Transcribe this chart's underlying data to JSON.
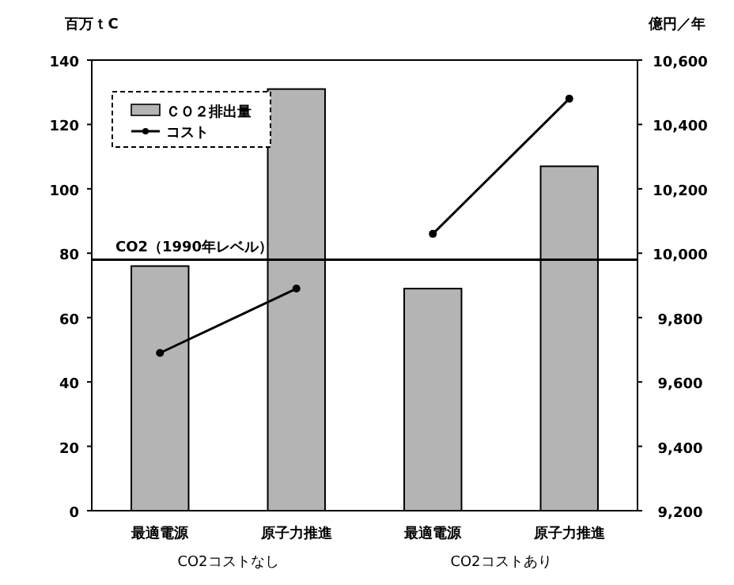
{
  "chart_data": {
    "type": "bar",
    "ylabel": "百万ｔC",
    "y2label": "億円／年",
    "categories": [
      "最適電源",
      "原子力推進",
      "最適電源",
      "原子力推進"
    ],
    "series": [
      {
        "name": "ＣＯ２排出量",
        "color": "#b4b4b4",
        "values": [
          76,
          131,
          69,
          107
        ]
      },
      {
        "name": "コスト",
        "type": "line",
        "axis": "y2",
        "color": "#000000",
        "values": [
          9690,
          9890,
          null,
          null
        ]
      },
      {
        "type": "line",
        "axis": "y2",
        "color": "#000000",
        "values": [
          null,
          null,
          10060,
          10480
        ]
      }
    ],
    "ylim": [
      0,
      140
    ],
    "yticks": [
      0,
      20,
      40,
      60,
      80,
      100,
      120,
      140
    ],
    "y2lim": [
      9200,
      10600
    ],
    "y2ticks": [
      {
        "value": 9200,
        "label": "9,200"
      },
      {
        "value": 9400,
        "label": "9,400"
      },
      {
        "value": 9600,
        "label": "9,600"
      },
      {
        "value": 9800,
        "label": "9,800"
      },
      {
        "value": 10000,
        "label": "10,000"
      },
      {
        "value": 10200,
        "label": "10,200"
      },
      {
        "value": 10400,
        "label": "10,400"
      },
      {
        "value": 10600,
        "label": "10,600"
      }
    ],
    "ref_lines": [
      {
        "axis": "y",
        "value": 78,
        "label": "CO2（1990年レベル）",
        "color": "#000000"
      }
    ],
    "annotations": [
      "CO2コストなし",
      "CO2コストあり"
    ],
    "marker": "circle",
    "legend": "top left",
    "grid": false
  }
}
